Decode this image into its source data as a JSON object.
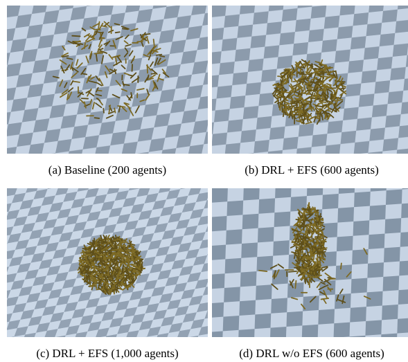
{
  "panels": [
    {
      "caption": "(a) Baseline (200 agents)"
    },
    {
      "caption": "(b) DRL + EFS (600 agents)"
    },
    {
      "caption": "(c) DRL + EFS (1,000 agents)"
    },
    {
      "caption": "(d) DRL w/o EFS (600 agents)"
    }
  ]
}
